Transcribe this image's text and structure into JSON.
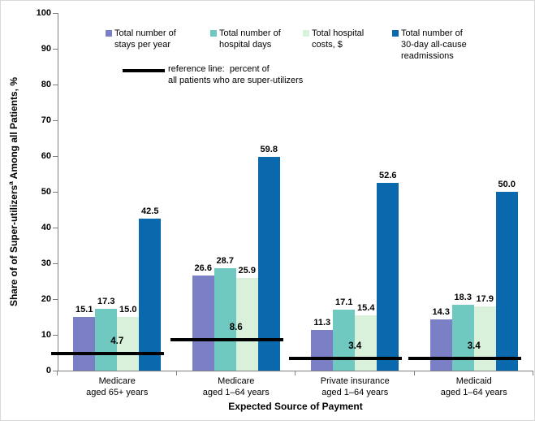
{
  "chart_data": {
    "type": "bar",
    "title": "",
    "ylabel": {
      "part1": "Share of of Super-utilizers",
      "sup": "a",
      "part2": " Among all Patients, %"
    },
    "xlabel": "Expected Source of Payment",
    "ylim": [
      0,
      100
    ],
    "ytick_step": 10,
    "grid": false,
    "legend_position": "top",
    "value_label_decimals": 1,
    "axis_color": "#808080",
    "categories": [
      [
        "Medicare",
        "aged 65+ years"
      ],
      [
        "Medicare",
        "aged 1–64 years"
      ],
      [
        "Private insurance",
        "aged 1–64 years"
      ],
      [
        "Medicaid",
        "aged 1–64 years"
      ]
    ],
    "series": [
      {
        "name": "Total number of stays per year",
        "label_lines": [
          "Total number of",
          "stays per year"
        ],
        "color": "#7B7FC6",
        "values": [
          15.1,
          26.6,
          11.3,
          14.3
        ]
      },
      {
        "name": "Total number of hospital days",
        "label_lines": [
          "Total number of",
          "hospital days"
        ],
        "color": "#6FC9C0",
        "values": [
          17.3,
          28.7,
          17.1,
          18.3
        ]
      },
      {
        "name": "Total hospital costs, $",
        "label_lines": [
          "Total hospital",
          "costs, $"
        ],
        "color": "#D9F0DA",
        "values": [
          15.0,
          25.9,
          15.4,
          17.9
        ]
      },
      {
        "name": "Total number of 30-day all-cause readmissions",
        "label_lines": [
          "Total number of",
          "30-day all-cause",
          "readmissions"
        ],
        "color": "#0A69AD",
        "values": [
          42.5,
          59.8,
          52.6,
          50.0
        ]
      }
    ],
    "reference_line": {
      "name": "reference line: percent of all patients who are super-utilizers",
      "label_lines": [
        "reference line:  percent of",
        "all patients who are super-utilizers"
      ],
      "color": "#000000",
      "values": [
        4.7,
        8.6,
        3.4,
        3.4
      ]
    }
  }
}
